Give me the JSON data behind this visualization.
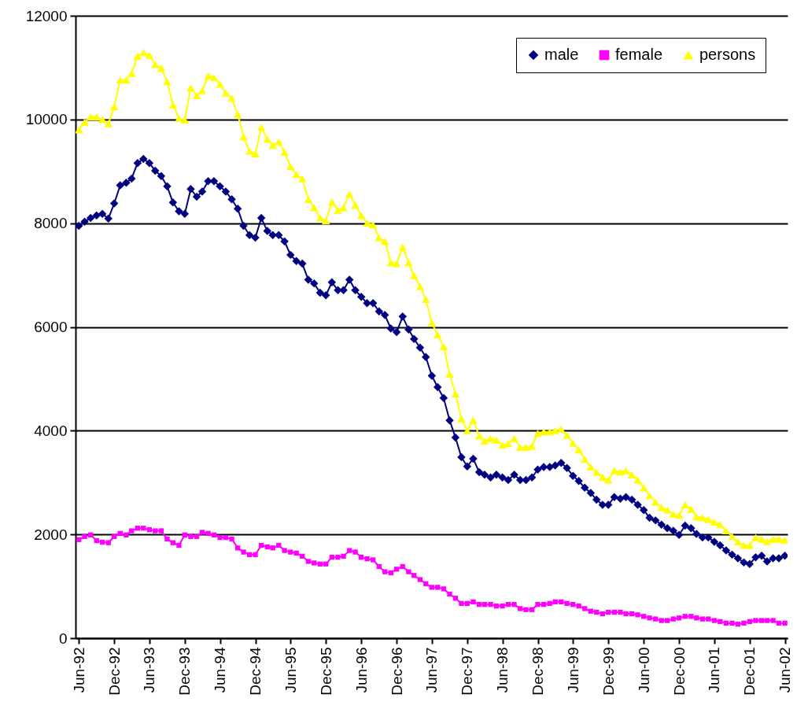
{
  "chart_data": {
    "type": "line",
    "x": [
      "1992-06",
      "1992-07",
      "1992-08",
      "1992-09",
      "1992-10",
      "1992-11",
      "1992-12",
      "1993-01",
      "1993-02",
      "1993-03",
      "1993-04",
      "1993-05",
      "1993-06",
      "1993-07",
      "1993-08",
      "1993-09",
      "1993-10",
      "1993-11",
      "1993-12",
      "1994-01",
      "1994-02",
      "1994-03",
      "1994-04",
      "1994-05",
      "1994-06",
      "1994-07",
      "1994-08",
      "1994-09",
      "1994-10",
      "1994-11",
      "1994-12",
      "1995-01",
      "1995-02",
      "1995-03",
      "1995-04",
      "1995-05",
      "1995-06",
      "1995-07",
      "1995-08",
      "1995-09",
      "1995-10",
      "1995-11",
      "1995-12",
      "1996-01",
      "1996-02",
      "1996-03",
      "1996-04",
      "1996-05",
      "1996-06",
      "1996-07",
      "1996-08",
      "1996-09",
      "1996-10",
      "1996-11",
      "1996-12",
      "1997-01",
      "1997-02",
      "1997-03",
      "1997-04",
      "1997-05",
      "1997-06",
      "1997-07",
      "1997-08",
      "1997-09",
      "1997-10",
      "1997-11",
      "1997-12",
      "1998-01",
      "1998-02",
      "1998-03",
      "1998-04",
      "1998-05",
      "1998-06",
      "1998-07",
      "1998-08",
      "1998-09",
      "1998-10",
      "1998-11",
      "1998-12",
      "1999-01",
      "1999-02",
      "1999-03",
      "1999-04",
      "1999-05",
      "1999-06",
      "1999-07",
      "1999-08",
      "1999-09",
      "1999-10",
      "1999-11",
      "1999-12",
      "2000-01",
      "2000-02",
      "2000-03",
      "2000-04",
      "2000-05",
      "2000-06",
      "2000-07",
      "2000-08",
      "2000-09",
      "2000-10",
      "2000-11",
      "2000-12",
      "2001-01",
      "2001-02",
      "2001-03",
      "2001-04",
      "2001-05",
      "2001-06",
      "2001-07",
      "2001-08",
      "2001-09",
      "2001-10",
      "2001-11",
      "2001-12",
      "2002-01",
      "2002-02",
      "2002-03",
      "2002-04",
      "2002-05",
      "2002-06"
    ],
    "series": [
      {
        "name": "male",
        "color": "#000080",
        "marker": "diamond",
        "values": [
          7950,
          8030,
          8100,
          8150,
          8180,
          8090,
          8380,
          8730,
          8780,
          8860,
          9160,
          9240,
          9160,
          9010,
          8910,
          8710,
          8400,
          8230,
          8180,
          8660,
          8510,
          8610,
          8810,
          8810,
          8710,
          8610,
          8460,
          8280,
          7950,
          7770,
          7720,
          8100,
          7850,
          7770,
          7770,
          7650,
          7390,
          7270,
          7220,
          6910,
          6840,
          6660,
          6610,
          6860,
          6710,
          6710,
          6910,
          6710,
          6580,
          6460,
          6460,
          6300,
          6230,
          5970,
          5900,
          6200,
          5950,
          5770,
          5600,
          5420,
          5060,
          4840,
          4630,
          4200,
          3870,
          3490,
          3310,
          3460,
          3200,
          3150,
          3100,
          3150,
          3100,
          3050,
          3150,
          3050,
          3050,
          3100,
          3250,
          3300,
          3300,
          3330,
          3380,
          3280,
          3130,
          3030,
          2900,
          2800,
          2670,
          2570,
          2570,
          2720,
          2690,
          2720,
          2670,
          2570,
          2470,
          2320,
          2270,
          2190,
          2120,
          2070,
          1990,
          2170,
          2120,
          2010,
          1940,
          1940,
          1860,
          1790,
          1690,
          1610,
          1540,
          1460,
          1430,
          1560,
          1590,
          1480,
          1540,
          1540,
          1590
        ]
      },
      {
        "name": "female",
        "color": "#ff00ff",
        "marker": "square",
        "values": [
          1900,
          1960,
          1990,
          1880,
          1850,
          1840,
          1960,
          2020,
          1990,
          2070,
          2120,
          2120,
          2090,
          2070,
          2070,
          1910,
          1840,
          1790,
          1990,
          1960,
          1960,
          2040,
          2020,
          1990,
          1940,
          1940,
          1910,
          1740,
          1660,
          1610,
          1610,
          1790,
          1760,
          1740,
          1790,
          1690,
          1660,
          1640,
          1580,
          1480,
          1450,
          1430,
          1430,
          1560,
          1560,
          1580,
          1690,
          1660,
          1560,
          1530,
          1510,
          1380,
          1280,
          1260,
          1330,
          1380,
          1280,
          1210,
          1130,
          1050,
          980,
          980,
          950,
          850,
          770,
          670,
          670,
          700,
          650,
          650,
          650,
          620,
          620,
          650,
          650,
          570,
          550,
          550,
          650,
          650,
          670,
          700,
          700,
          670,
          650,
          620,
          570,
          520,
          500,
          470,
          500,
          500,
          500,
          470,
          470,
          450,
          420,
          390,
          370,
          340,
          340,
          370,
          390,
          420,
          420,
          390,
          370,
          370,
          340,
          320,
          290,
          290,
          270,
          290,
          320,
          340,
          340,
          340,
          340,
          290,
          290
        ]
      },
      {
        "name": "persons",
        "color": "#ffff00",
        "marker": "triangle",
        "values": [
          9800,
          9950,
          10050,
          10050,
          10000,
          9920,
          10250,
          10760,
          10760,
          10890,
          11220,
          11290,
          11240,
          11060,
          10990,
          10730,
          10280,
          10020,
          9990,
          10610,
          10460,
          10560,
          10840,
          10810,
          10680,
          10510,
          10410,
          10100,
          9670,
          9390,
          9340,
          9850,
          9620,
          9500,
          9570,
          9370,
          9090,
          8940,
          8860,
          8460,
          8300,
          8100,
          8050,
          8410,
          8250,
          8300,
          8560,
          8350,
          8150,
          8000,
          7970,
          7720,
          7650,
          7240,
          7220,
          7540,
          7240,
          6990,
          6780,
          6530,
          6080,
          5850,
          5620,
          5090,
          4710,
          4230,
          4000,
          4200,
          3900,
          3800,
          3850,
          3820,
          3720,
          3750,
          3850,
          3680,
          3680,
          3700,
          3950,
          3980,
          3980,
          4000,
          4030,
          3910,
          3760,
          3630,
          3450,
          3300,
          3200,
          3100,
          3050,
          3230,
          3200,
          3230,
          3150,
          3050,
          2900,
          2750,
          2620,
          2520,
          2470,
          2390,
          2370,
          2570,
          2490,
          2340,
          2320,
          2290,
          2240,
          2190,
          2070,
          1960,
          1860,
          1790,
          1790,
          1940,
          1910,
          1860,
          1910,
          1910,
          1890
        ]
      }
    ],
    "xlim": [
      "1992-05-15",
      "2002-06-15"
    ],
    "xticks": [
      {
        "value": "1992-06",
        "label": "Jun-92"
      },
      {
        "value": "1992-12",
        "label": "Dec-92"
      },
      {
        "value": "1993-06",
        "label": "Jun-93"
      },
      {
        "value": "1993-12",
        "label": "Dec-93"
      },
      {
        "value": "1994-06",
        "label": "Jun-94"
      },
      {
        "value": "1994-12",
        "label": "Dec-94"
      },
      {
        "value": "1995-06",
        "label": "Jun-95"
      },
      {
        "value": "1995-12",
        "label": "Dec-95"
      },
      {
        "value": "1996-06",
        "label": "Jun-96"
      },
      {
        "value": "1996-12",
        "label": "Dec-96"
      },
      {
        "value": "1997-06",
        "label": "Jun-97"
      },
      {
        "value": "1997-12",
        "label": "Dec-97"
      },
      {
        "value": "1998-06",
        "label": "Jun-98"
      },
      {
        "value": "1998-12",
        "label": "Dec-98"
      },
      {
        "value": "1999-06",
        "label": "Jun-99"
      },
      {
        "value": "1999-12",
        "label": "Dec-99"
      },
      {
        "value": "2000-06",
        "label": "Jun-00"
      },
      {
        "value": "2000-12",
        "label": "Dec-00"
      },
      {
        "value": "2001-06",
        "label": "Jun-01"
      },
      {
        "value": "2001-12",
        "label": "Dec-01"
      },
      {
        "value": "2002-06",
        "label": "Jun-02"
      }
    ],
    "ylim": [
      0,
      12000
    ],
    "yticks": [
      0,
      2000,
      4000,
      6000,
      8000,
      10000,
      12000
    ],
    "grid": "y",
    "legend": "top right"
  }
}
